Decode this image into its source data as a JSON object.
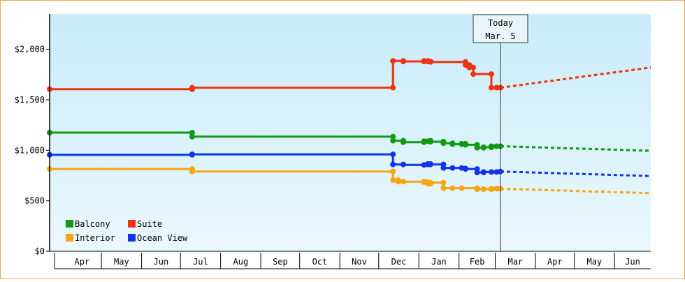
{
  "chart_data": {
    "type": "line",
    "title": "",
    "xlabel": "",
    "ylabel": "",
    "ylim": [
      0,
      2350
    ],
    "yticks": [
      0,
      500,
      1000,
      1500,
      2000
    ],
    "ytick_labels": [
      "$0",
      "$500",
      "$1,000",
      "$1,500",
      "$2,000"
    ],
    "xlim": [
      "2014-03-22",
      "2015-06-29"
    ],
    "months": [
      {
        "label": "Apr",
        "start": "2014-04-01",
        "end": "2014-05-01"
      },
      {
        "label": "May",
        "start": "2014-05-01",
        "end": "2014-06-01"
      },
      {
        "label": "Jun",
        "start": "2014-06-01",
        "end": "2014-07-01"
      },
      {
        "label": "Jul",
        "start": "2014-07-01",
        "end": "2014-08-01"
      },
      {
        "label": "Aug",
        "start": "2014-08-01",
        "end": "2014-09-01"
      },
      {
        "label": "Sep",
        "start": "2014-09-01",
        "end": "2014-10-01"
      },
      {
        "label": "Oct",
        "start": "2014-10-01",
        "end": "2014-11-01"
      },
      {
        "label": "Nov",
        "start": "2014-11-01",
        "end": "2014-12-01"
      },
      {
        "label": "Dec",
        "start": "2014-12-01",
        "end": "2015-01-01"
      },
      {
        "label": "Jan",
        "start": "2015-01-01",
        "end": "2015-02-01"
      },
      {
        "label": "Feb",
        "start": "2015-02-01",
        "end": "2015-03-01"
      },
      {
        "label": "Mar",
        "start": "2015-03-01",
        "end": "2015-04-01"
      },
      {
        "label": "Apr",
        "start": "2015-04-01",
        "end": "2015-05-01"
      },
      {
        "label": "May",
        "start": "2015-05-01",
        "end": "2015-06-01"
      },
      {
        "label": "Jun",
        "start": "2015-06-01",
        "end": "2015-06-29"
      }
    ],
    "today": {
      "label_line1": "Today",
      "label_line2": "Mar. 5",
      "date": "2015-03-05"
    },
    "grid": false,
    "legend_position": "bottom-left",
    "series": [
      {
        "name": "Balcony",
        "color": "#119911",
        "points": [
          [
            "2014-03-22",
            1175
          ],
          [
            "2014-07-10",
            1175
          ],
          [
            "2014-07-10",
            1135
          ],
          [
            "2014-12-12",
            1135
          ],
          [
            "2014-12-12",
            1095
          ],
          [
            "2014-12-20",
            1095
          ],
          [
            "2014-12-20",
            1080
          ],
          [
            "2015-01-05",
            1080
          ],
          [
            "2015-01-05",
            1090
          ],
          [
            "2015-01-08",
            1090
          ],
          [
            "2015-01-08",
            1095
          ],
          [
            "2015-01-10",
            1095
          ],
          [
            "2015-01-10",
            1085
          ],
          [
            "2015-01-20",
            1085
          ],
          [
            "2015-01-20",
            1070
          ],
          [
            "2015-01-27",
            1070
          ],
          [
            "2015-01-27",
            1060
          ],
          [
            "2015-02-03",
            1060
          ],
          [
            "2015-02-03",
            1065
          ],
          [
            "2015-02-06",
            1065
          ],
          [
            "2015-02-06",
            1055
          ],
          [
            "2015-02-15",
            1055
          ],
          [
            "2015-02-15",
            1025
          ],
          [
            "2015-02-20",
            1025
          ],
          [
            "2015-02-20",
            1030
          ],
          [
            "2015-02-26",
            1030
          ],
          [
            "2015-02-26",
            1040
          ],
          [
            "2015-03-02",
            1040
          ],
          [
            "2015-03-02",
            1040
          ],
          [
            "2015-03-05",
            1040
          ]
        ],
        "forecast": [
          [
            "2015-03-05",
            1040
          ],
          [
            "2015-06-29",
            995
          ]
        ]
      },
      {
        "name": "Suite",
        "color": "#ee3311",
        "points": [
          [
            "2014-03-22",
            1605
          ],
          [
            "2014-07-10",
            1605
          ],
          [
            "2014-07-10",
            1620
          ],
          [
            "2014-12-12",
            1620
          ],
          [
            "2014-12-12",
            1885
          ],
          [
            "2014-12-20",
            1885
          ],
          [
            "2014-12-20",
            1880
          ],
          [
            "2015-01-05",
            1880
          ],
          [
            "2015-01-05",
            1885
          ],
          [
            "2015-01-08",
            1885
          ],
          [
            "2015-01-08",
            1880
          ],
          [
            "2015-01-10",
            1880
          ],
          [
            "2015-01-10",
            1875
          ],
          [
            "2015-02-06",
            1875
          ],
          [
            "2015-02-06",
            1845
          ],
          [
            "2015-02-09",
            1845
          ],
          [
            "2015-02-09",
            1820
          ],
          [
            "2015-02-12",
            1820
          ],
          [
            "2015-02-12",
            1755
          ],
          [
            "2015-02-26",
            1755
          ],
          [
            "2015-02-26",
            1620
          ],
          [
            "2015-03-02",
            1620
          ],
          [
            "2015-03-02",
            1620
          ],
          [
            "2015-03-05",
            1620
          ]
        ],
        "forecast": [
          [
            "2015-03-05",
            1620
          ],
          [
            "2015-06-29",
            1820
          ]
        ]
      },
      {
        "name": "Interior",
        "color": "#f5a611",
        "points": [
          [
            "2014-03-22",
            815
          ],
          [
            "2014-07-10",
            815
          ],
          [
            "2014-07-10",
            790
          ],
          [
            "2014-12-12",
            790
          ],
          [
            "2014-12-12",
            705
          ],
          [
            "2014-12-16",
            705
          ],
          [
            "2014-12-16",
            690
          ],
          [
            "2014-12-20",
            690
          ],
          [
            "2014-12-20",
            690
          ],
          [
            "2015-01-05",
            690
          ],
          [
            "2015-01-05",
            685
          ],
          [
            "2015-01-08",
            685
          ],
          [
            "2015-01-08",
            670
          ],
          [
            "2015-01-10",
            670
          ],
          [
            "2015-01-10",
            680
          ],
          [
            "2015-01-20",
            680
          ],
          [
            "2015-01-20",
            625
          ],
          [
            "2015-01-27",
            625
          ],
          [
            "2015-01-27",
            625
          ],
          [
            "2015-02-03",
            625
          ],
          [
            "2015-02-03",
            625
          ],
          [
            "2015-02-15",
            625
          ],
          [
            "2015-02-15",
            615
          ],
          [
            "2015-02-20",
            615
          ],
          [
            "2015-02-20",
            615
          ],
          [
            "2015-02-26",
            615
          ],
          [
            "2015-02-26",
            620
          ],
          [
            "2015-03-02",
            620
          ],
          [
            "2015-03-02",
            620
          ],
          [
            "2015-03-05",
            620
          ]
        ],
        "forecast": [
          [
            "2015-03-05",
            620
          ],
          [
            "2015-06-29",
            575
          ]
        ]
      },
      {
        "name": "Ocean View",
        "color": "#1133ee",
        "points": [
          [
            "2014-03-22",
            955
          ],
          [
            "2014-07-10",
            955
          ],
          [
            "2014-07-10",
            960
          ],
          [
            "2014-12-12",
            960
          ],
          [
            "2014-12-12",
            860
          ],
          [
            "2014-12-20",
            860
          ],
          [
            "2014-12-20",
            855
          ],
          [
            "2015-01-05",
            855
          ],
          [
            "2015-01-05",
            860
          ],
          [
            "2015-01-08",
            860
          ],
          [
            "2015-01-08",
            865
          ],
          [
            "2015-01-10",
            865
          ],
          [
            "2015-01-10",
            860
          ],
          [
            "2015-01-20",
            860
          ],
          [
            "2015-01-20",
            825
          ],
          [
            "2015-01-27",
            825
          ],
          [
            "2015-01-27",
            825
          ],
          [
            "2015-02-03",
            825
          ],
          [
            "2015-02-03",
            820
          ],
          [
            "2015-02-06",
            820
          ],
          [
            "2015-02-06",
            815
          ],
          [
            "2015-02-15",
            815
          ],
          [
            "2015-02-15",
            780
          ],
          [
            "2015-02-20",
            780
          ],
          [
            "2015-02-20",
            785
          ],
          [
            "2015-02-26",
            785
          ],
          [
            "2015-02-26",
            785
          ],
          [
            "2015-03-02",
            785
          ],
          [
            "2015-03-02",
            790
          ],
          [
            "2015-03-05",
            790
          ]
        ],
        "forecast": [
          [
            "2015-03-05",
            790
          ],
          [
            "2015-06-29",
            745
          ]
        ]
      }
    ],
    "legend": [
      {
        "label": "Balcony",
        "color": "#119911"
      },
      {
        "label": "Suite",
        "color": "#ee3311"
      },
      {
        "label": "Interior",
        "color": "#f5a611"
      },
      {
        "label": "Ocean View",
        "color": "#1133ee"
      }
    ],
    "colors": {
      "background_top": "#c9ecf9",
      "background_bottom": "#eaf8fd",
      "axis": "#000000",
      "today_line": "#333333",
      "today_box_fill": "#e8f6fb"
    }
  }
}
